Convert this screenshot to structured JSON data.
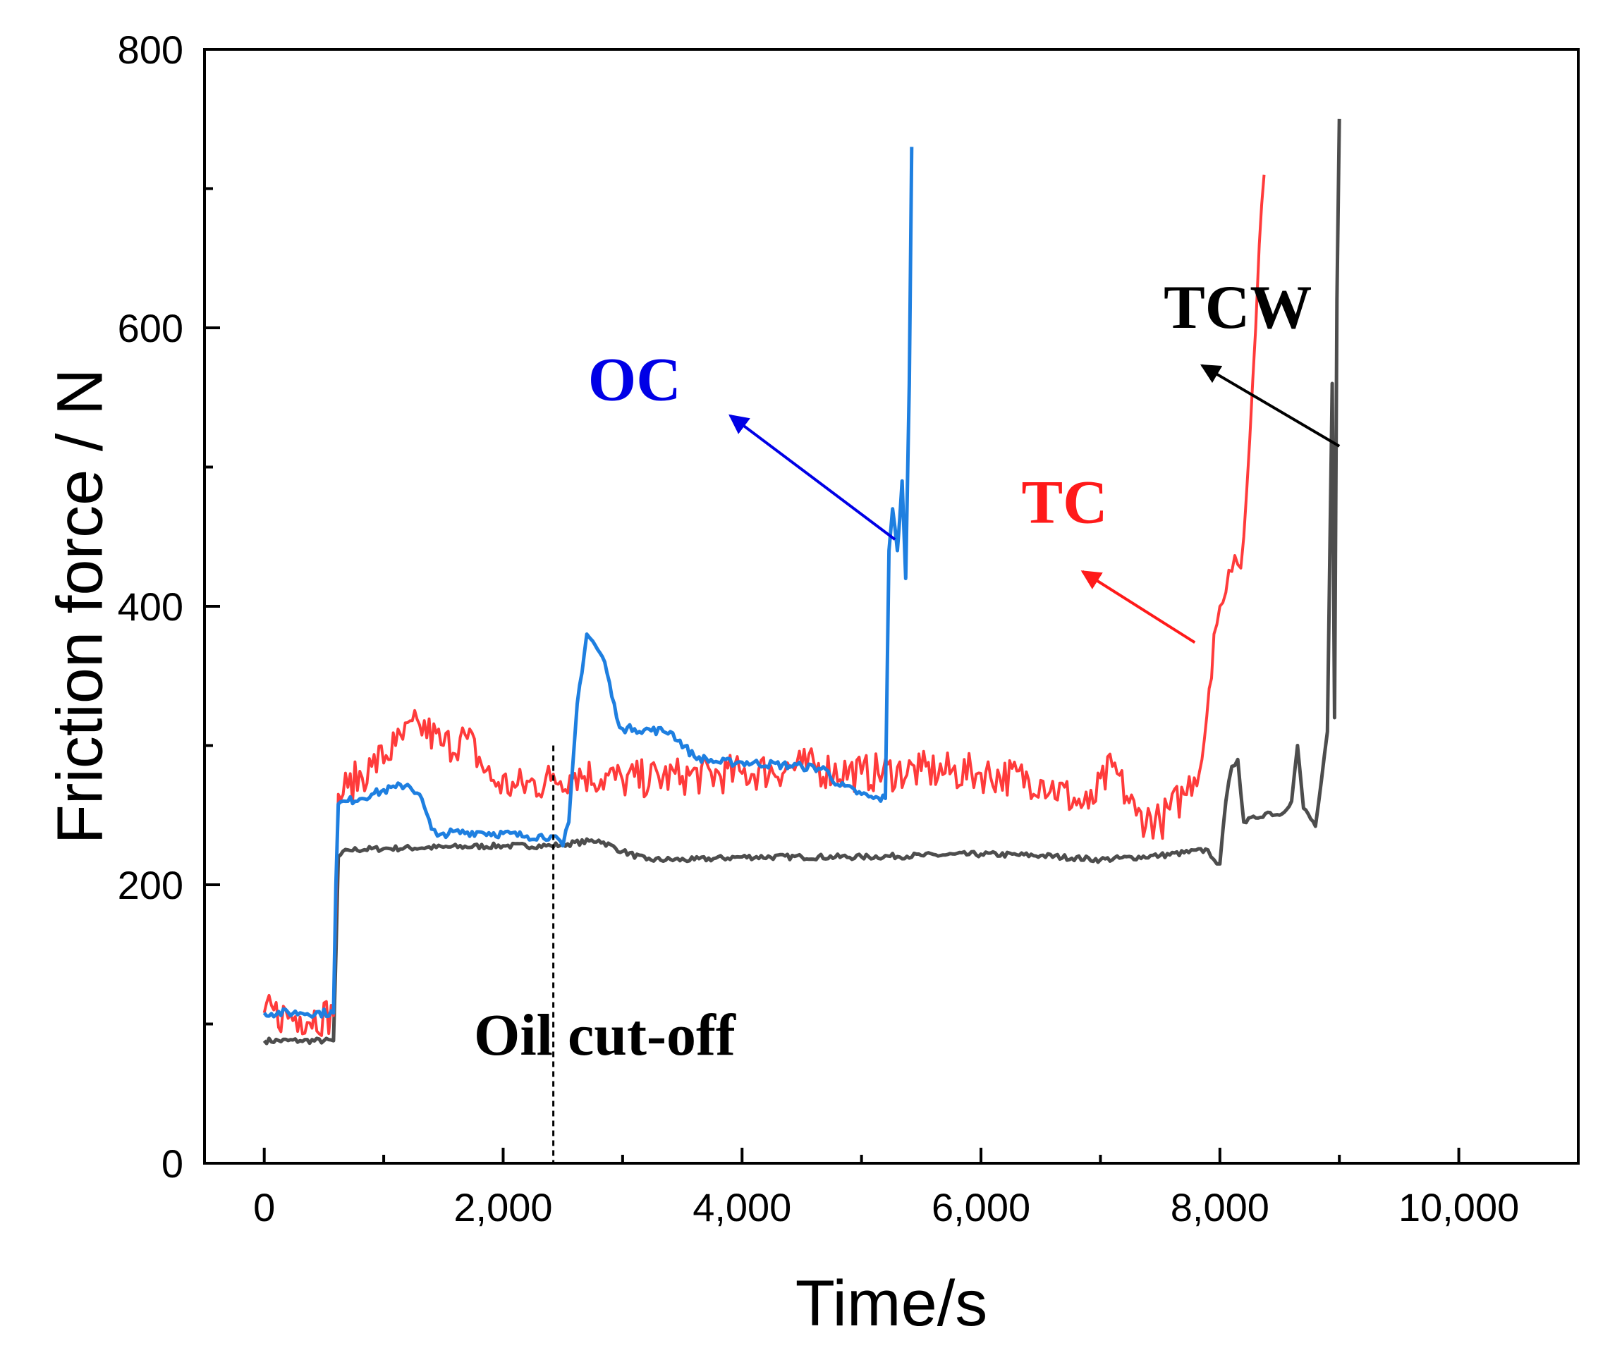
{
  "chart_data": {
    "type": "line",
    "xlabel": "Time/s",
    "ylabel": "Friction force / N",
    "xlim": [
      -500,
      11000
    ],
    "ylim": [
      0,
      800
    ],
    "xticks": [
      0,
      2000,
      4000,
      6000,
      8000,
      10000
    ],
    "xtick_labels": [
      "0",
      "2,000",
      "4,000",
      "6,000",
      "8,000",
      "10,000"
    ],
    "yticks": [
      0,
      200,
      400,
      600,
      800
    ],
    "ytick_labels": [
      "0",
      "200",
      "400",
      "600",
      "800"
    ],
    "grid": false,
    "series": [
      {
        "name": "TCW",
        "color": "#4d4d4d",
        "x": [
          0,
          300,
          580,
          600,
          620,
          700,
          1000,
          1500,
          2000,
          2400,
          2800,
          3000,
          3200,
          3600,
          4000,
          4500,
          5000,
          5500,
          6000,
          6500,
          7000,
          7500,
          7900,
          7950,
          8000,
          8050,
          8100,
          8150,
          8200,
          8300,
          8400,
          8500,
          8600,
          8650,
          8700,
          8800,
          8850,
          8900,
          8940,
          8960,
          8980,
          9000
        ],
        "y": [
          88,
          88,
          88,
          150,
          220,
          225,
          226,
          227,
          228,
          228,
          232,
          224,
          218,
          218,
          220,
          220,
          220,
          221,
          222,
          221,
          218,
          221,
          225,
          218,
          215,
          260,
          285,
          290,
          245,
          248,
          252,
          250,
          260,
          300,
          255,
          242,
          275,
          310,
          560,
          320,
          620,
          750
        ]
      },
      {
        "name": "TC",
        "color": "#ff3b3b",
        "x": [
          0,
          300,
          580,
          600,
          620,
          700,
          900,
          1100,
          1300,
          1500,
          1700,
          1900,
          2100,
          2400,
          2600,
          3000,
          3500,
          4000,
          4500,
          5000,
          5500,
          6000,
          6500,
          6900,
          7100,
          7300,
          7500,
          7700,
          7850,
          7950,
          8000,
          8050,
          8100,
          8150,
          8200,
          8250,
          8300,
          8330,
          8370
        ],
        "y": [
          108,
          105,
          106,
          180,
          265,
          270,
          285,
          300,
          315,
          300,
          305,
          275,
          270,
          275,
          280,
          275,
          278,
          280,
          285,
          280,
          282,
          280,
          275,
          255,
          285,
          250,
          245,
          265,
          290,
          380,
          400,
          410,
          425,
          430,
          450,
          520,
          600,
          660,
          710
        ]
      },
      {
        "name": "OC",
        "color": "#1e7fe0",
        "x": [
          0,
          300,
          580,
          600,
          620,
          700,
          900,
          1100,
          1200,
          1300,
          1400,
          1450,
          1500,
          1800,
          2200,
          2400,
          2500,
          2550,
          2620,
          2700,
          2750,
          2850,
          2950,
          3000,
          3100,
          3400,
          3600,
          3800,
          4000,
          4500,
          4700,
          4800,
          5000,
          5100,
          5200,
          5230,
          5260,
          5300,
          5340,
          5370,
          5400,
          5420
        ],
        "y": [
          108,
          108,
          108,
          200,
          258,
          260,
          265,
          270,
          272,
          265,
          240,
          235,
          237,
          238,
          235,
          235,
          228,
          245,
          330,
          380,
          375,
          360,
          320,
          312,
          312,
          310,
          292,
          288,
          288,
          285,
          283,
          272,
          265,
          262,
          262,
          440,
          470,
          440,
          490,
          420,
          560,
          730
        ]
      }
    ],
    "labels": [
      {
        "text": "TCW",
        "color": "#000000",
        "x": 8150,
        "y": 600,
        "arrow_from": [
          9000,
          515
        ],
        "arrow_to": [
          7850,
          573
        ]
      },
      {
        "text": "OC",
        "color": "#0000e6",
        "x": 3100,
        "y": 548,
        "arrow_from": [
          5280,
          448
        ],
        "arrow_to": [
          3900,
          537
        ]
      },
      {
        "text": "TC",
        "color": "#ff1a1a",
        "x": 6700,
        "y": 460,
        "arrow_from": [
          7790,
          374
        ],
        "arrow_to": [
          6850,
          425
        ]
      },
      {
        "text": "Oil cut-off",
        "color": "#000000",
        "x": 2850,
        "y": 78
      }
    ],
    "oil_cutoff_time": 2420
  }
}
